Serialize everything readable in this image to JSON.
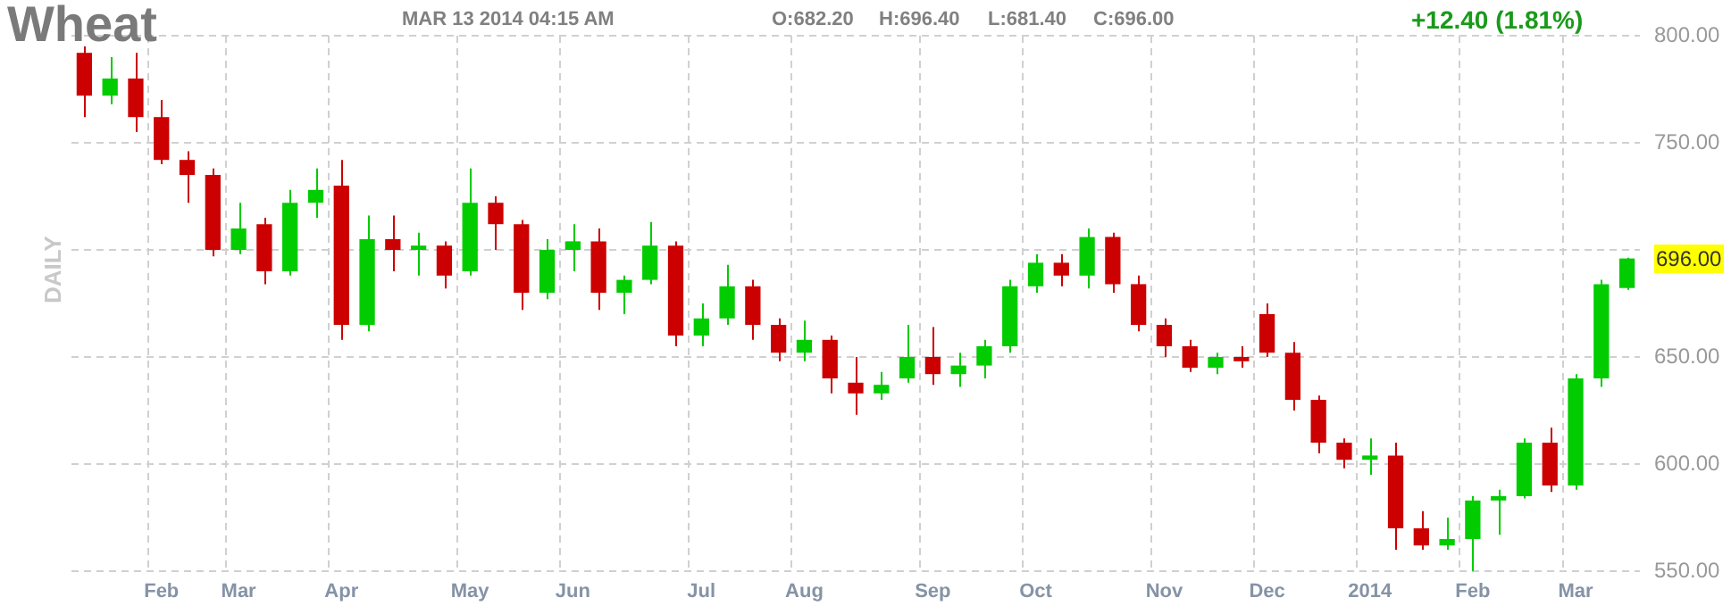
{
  "chart_data": {
    "type": "candlestick",
    "title": "Wheat",
    "ylabel": "DAILY",
    "annotations": [
      "MAR 13 2014 04:15 AM",
      "O:682.20",
      "H:696.40",
      "L:681.40",
      "C:696.00",
      "+12.40 (1.81%)",
      "696.00"
    ],
    "categories": [
      null,
      null,
      null,
      "Feb",
      null,
      null,
      "Mar",
      null,
      null,
      null,
      "Apr",
      null,
      null,
      null,
      null,
      "May",
      null,
      null,
      null,
      "Jun",
      null,
      null,
      null,
      null,
      "Jul",
      null,
      null,
      null,
      "Aug",
      null,
      null,
      null,
      null,
      "Sep",
      null,
      null,
      null,
      "Oct",
      null,
      null,
      null,
      null,
      "Nov",
      null,
      null,
      null,
      "Dec",
      null,
      null,
      null,
      "2014",
      null,
      null,
      null,
      "Feb",
      null,
      null,
      null,
      "Mar",
      null,
      null
    ],
    "ohlc": [
      [
        792,
        795,
        762,
        772
      ],
      [
        772,
        790,
        768,
        780
      ],
      [
        780,
        792,
        755,
        762
      ],
      [
        762,
        770,
        740,
        742
      ],
      [
        742,
        746,
        722,
        735
      ],
      [
        735,
        738,
        697,
        700
      ],
      [
        700,
        722,
        698,
        710
      ],
      [
        712,
        715,
        684,
        690
      ],
      [
        690,
        728,
        688,
        722
      ],
      [
        722,
        738,
        715,
        728
      ],
      [
        730,
        742,
        658,
        665
      ],
      [
        665,
        716,
        662,
        705
      ],
      [
        705,
        716,
        690,
        700
      ],
      [
        700,
        708,
        688,
        702
      ],
      [
        702,
        704,
        682,
        688
      ],
      [
        690,
        738,
        688,
        722
      ],
      [
        722,
        725,
        700,
        712
      ],
      [
        712,
        714,
        672,
        680
      ],
      [
        680,
        705,
        677,
        700
      ],
      [
        700,
        712,
        690,
        704
      ],
      [
        704,
        710,
        672,
        680
      ],
      [
        680,
        688,
        670,
        686
      ],
      [
        686,
        713,
        684,
        702
      ],
      [
        702,
        704,
        655,
        660
      ],
      [
        660,
        675,
        655,
        668
      ],
      [
        668,
        693,
        665,
        683
      ],
      [
        683,
        686,
        658,
        665
      ],
      [
        665,
        668,
        648,
        652
      ],
      [
        652,
        667,
        648,
        658
      ],
      [
        658,
        660,
        633,
        640
      ],
      [
        638,
        650,
        623,
        633
      ],
      [
        633,
        643,
        630,
        637
      ],
      [
        640,
        665,
        638,
        650
      ],
      [
        650,
        664,
        637,
        642
      ],
      [
        642,
        652,
        636,
        646
      ],
      [
        646,
        658,
        640,
        655
      ],
      [
        655,
        686,
        652,
        683
      ],
      [
        683,
        698,
        680,
        694
      ],
      [
        694,
        698,
        683,
        688
      ],
      [
        688,
        710,
        682,
        706
      ],
      [
        706,
        708,
        680,
        684
      ],
      [
        684,
        688,
        662,
        665
      ],
      [
        665,
        668,
        650,
        655
      ],
      [
        655,
        658,
        643,
        645
      ],
      [
        645,
        652,
        642,
        650
      ],
      [
        650,
        655,
        645,
        648
      ],
      [
        670,
        675,
        650,
        652
      ],
      [
        652,
        657,
        625,
        630
      ],
      [
        630,
        632,
        605,
        610
      ],
      [
        610,
        612,
        598,
        602
      ],
      [
        602,
        612,
        595,
        604
      ],
      [
        604,
        610,
        560,
        570
      ],
      [
        570,
        578,
        560,
        562
      ],
      [
        562,
        575,
        560,
        565
      ],
      [
        565,
        585,
        550,
        583
      ],
      [
        583,
        588,
        567,
        585
      ],
      [
        585,
        612,
        584,
        610
      ],
      [
        610,
        617,
        587,
        590
      ],
      [
        590,
        642,
        588,
        640
      ],
      [
        640,
        686,
        636,
        684
      ],
      [
        682.2,
        696.4,
        681.4,
        696
      ]
    ],
    "colors": [
      "#cc0000",
      "#00cc00",
      "#cc0000",
      "#cc0000",
      "#cc0000",
      "#cc0000",
      "#00cc00",
      "#cc0000",
      "#00cc00",
      "#00cc00",
      "#cc0000",
      "#00cc00",
      "#cc0000",
      "#00cc00",
      "#cc0000",
      "#00cc00",
      "#cc0000",
      "#cc0000",
      "#00cc00",
      "#00cc00",
      "#cc0000",
      "#00cc00",
      "#00cc00",
      "#cc0000",
      "#00cc00",
      "#00cc00",
      "#cc0000",
      "#cc0000",
      "#00cc00",
      "#cc0000",
      "#cc0000",
      "#00cc00",
      "#00cc00",
      "#cc0000",
      "#00cc00",
      "#00cc00",
      "#00cc00",
      "#00cc00",
      "#cc0000",
      "#00cc00",
      "#cc0000",
      "#cc0000",
      "#cc0000",
      "#cc0000",
      "#00cc00",
      "#cc0000",
      "#cc0000",
      "#cc0000",
      "#cc0000",
      "#cc0000",
      "#00cc00",
      "#cc0000",
      "#cc0000",
      "#00cc00",
      "#00cc00",
      "#00cc00",
      "#00cc00",
      "#cc0000",
      "#00cc00",
      "#00cc00",
      "#00cc00"
    ],
    "ylim": [
      550,
      800
    ],
    "yticks": [
      {
        "value": 550,
        "label": "550.00"
      },
      {
        "value": 600,
        "label": "600.00"
      },
      {
        "value": 650,
        "label": "650.00"
      },
      {
        "value": 700,
        "label": null
      },
      {
        "value": 750,
        "label": "750.00"
      },
      {
        "value": 800,
        "label": "800.00"
      }
    ],
    "grid": true,
    "legend": false
  }
}
